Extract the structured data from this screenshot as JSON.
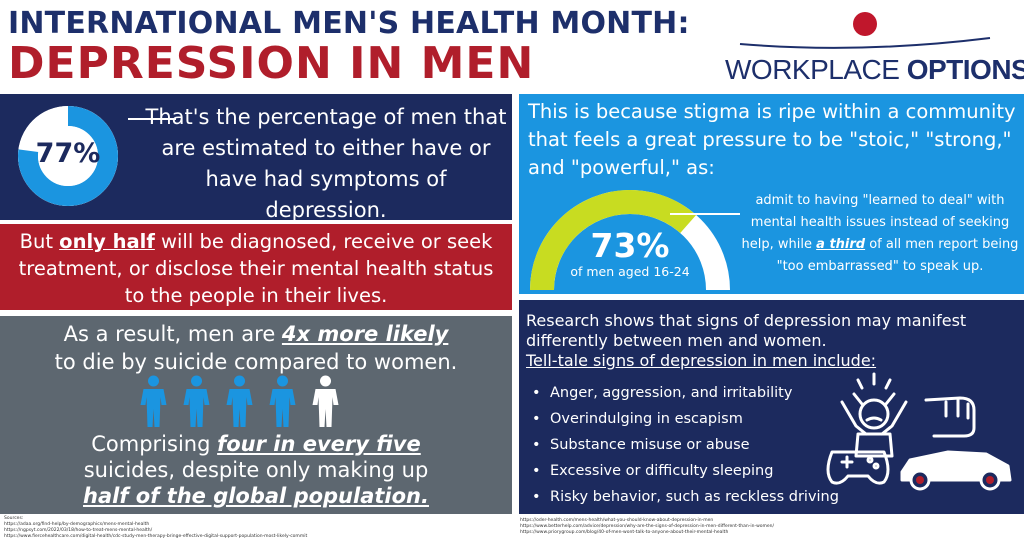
{
  "header": {
    "line1": "INTERNATIONAL MEN'S HEALTH MONTH:",
    "line2": "DEPRESSION IN MEN"
  },
  "logo": {
    "text_regular": "WORKPLACE ",
    "text_bold": "OPTIONS",
    "colors": {
      "dot": "#c0172c",
      "text": "#1d2f6b"
    }
  },
  "stat_77": {
    "value": "77%",
    "fraction": 0.77,
    "text": "That's the percentage of men that are estimated to either have or have had symptoms of depression."
  },
  "half": {
    "pre": "But ",
    "emphasis": "only half",
    "post": " will be diagnosed, receive or seek treatment, or disclose their mental health status to the people in their lives."
  },
  "suicide": {
    "pre": "As a result, men are ",
    "emphasis": "4x more likely",
    "post": " to die by suicide compared to women."
  },
  "people": {
    "total": 5,
    "highlighted": 4,
    "color_highlight": "#1b95e0",
    "color_other": "#ffffff"
  },
  "four_in_five": {
    "pre": "Comprising ",
    "emphasis": "four in every five",
    "mid": " suicides, despite only making up ",
    "emphasis2": "half of the global population."
  },
  "stigma": {
    "text": "This is because stigma is ripe within a community that feels a great pressure to be \"stoic,\" \"strong,\" and \"powerful,\" as:"
  },
  "stat_73": {
    "value": "73%",
    "fraction": 0.73,
    "subtitle": "of men aged 16-24",
    "text_pre": "admit to having \"learned to deal\" with mental health issues instead of seeking help, while ",
    "text_emphasis": "a third",
    "text_post": " of all men report being \"too embarrassed\" to speak up."
  },
  "signs": {
    "research": "Research shows that signs of depression may manifest differently between men and women.",
    "heading": "Tell-tale signs of depression in men include:",
    "items": [
      "Anger, aggression, and irritability",
      "Overindulging in escapism",
      "Substance misuse or abuse",
      "Excessive or difficulty sleeping",
      "Risky behavior, such as reckless driving"
    ]
  },
  "sources_left": [
    "Sources:",
    "https://adaa.org/find-help/by-demographics/mens-mental-health",
    "https://ngpsyt.com/2022/03/18/how-to-treat-mens-mental-health/",
    "https://www.fiercehealthcare.com/digital-health/cdc-study-men-therapy-bringe-effective-digital-support-population-most-likely-commit"
  ],
  "sources_right": [
    "https://oder-health.com/mens-health/what-you-should-know-about-depression-in-men",
    "https://www.betterhelp.com/advice/depression/why-are-the-signs-of-depression-in-men-different-than-in-women/",
    "https://www.priorygroup.com/blog/40-of-men-wont-talk-to-anyone-about-their-mental-health"
  ],
  "colors": {
    "navy": "#1c2a5e",
    "red": "#b01e2b",
    "slate": "#5d6770",
    "sky": "#1b95e0",
    "lime": "#c8dc21"
  }
}
